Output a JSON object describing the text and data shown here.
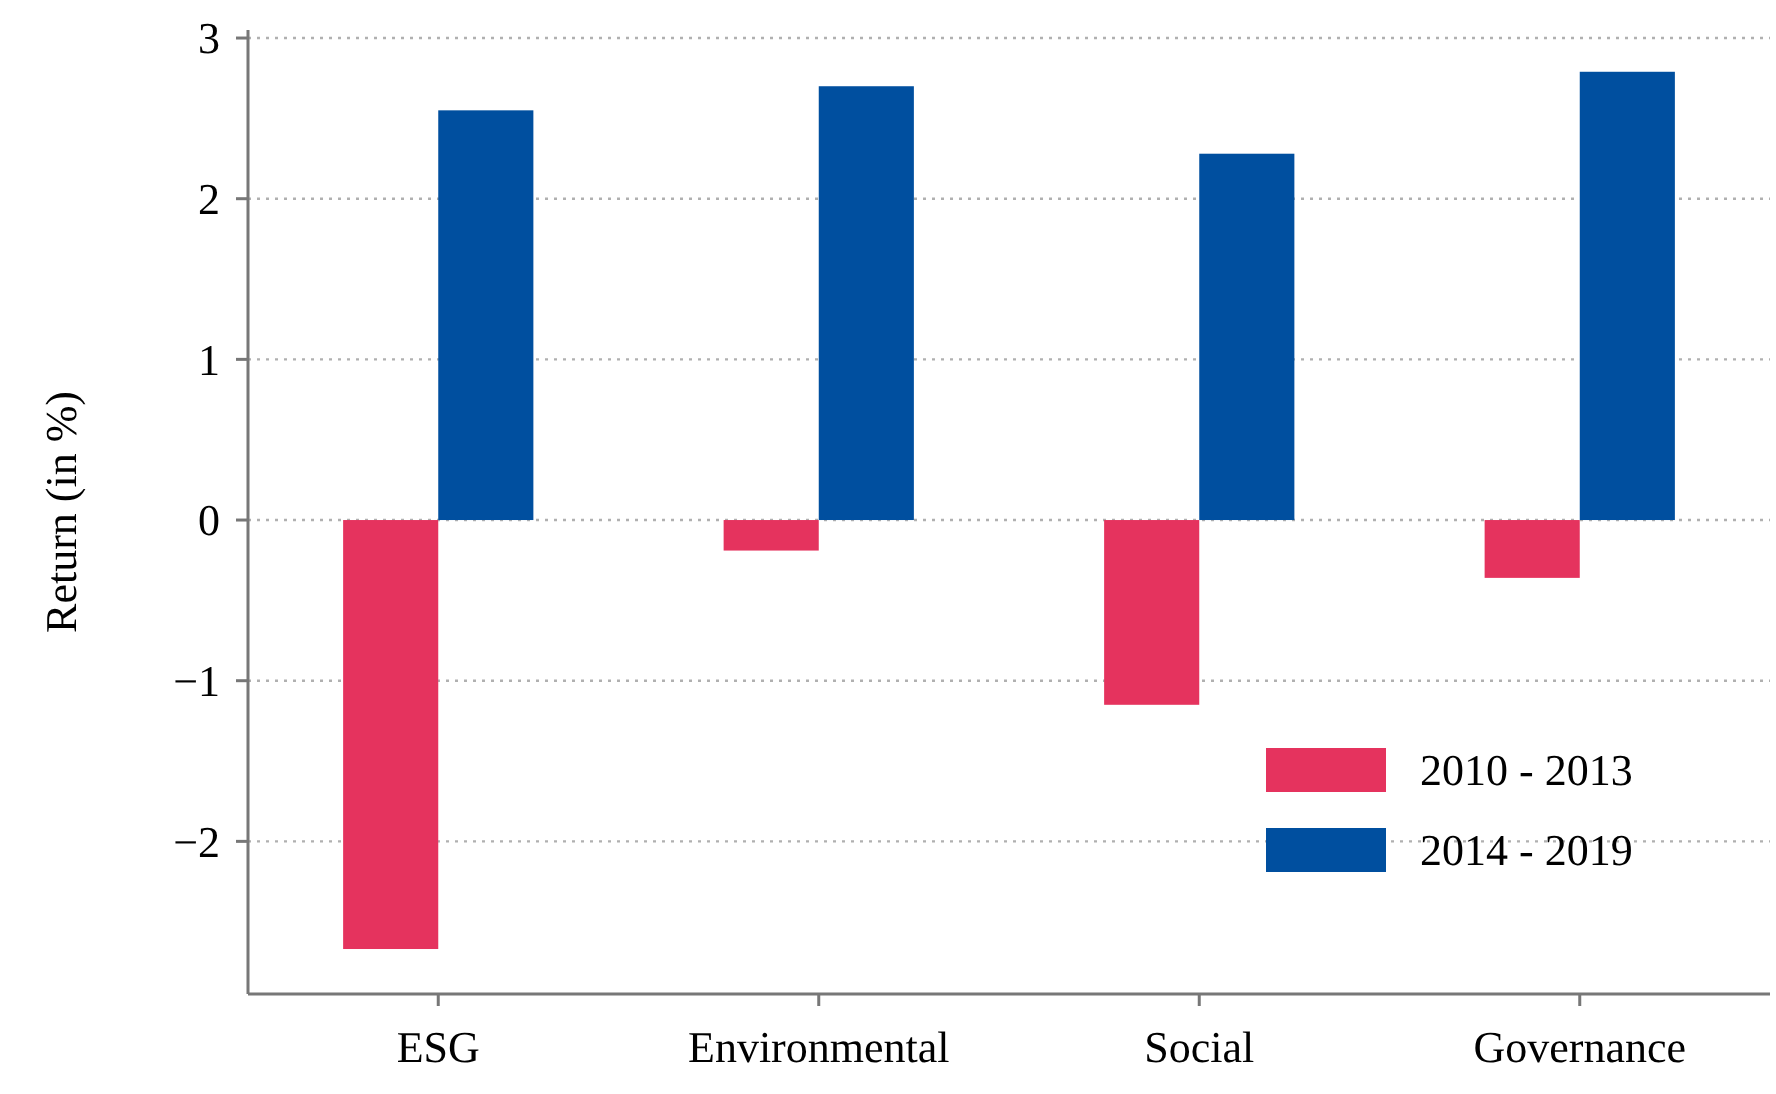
{
  "chart_data": {
    "type": "bar",
    "ylabel": "Return (in %)",
    "categories": [
      "ESG",
      "Environmental",
      "Social",
      "Governance"
    ],
    "series": [
      {
        "name": "2010 - 2013",
        "color": "#e5335e",
        "values": [
          -2.67,
          -0.19,
          -1.15,
          -0.36
        ]
      },
      {
        "name": "2014 - 2019",
        "color": "#004f9f",
        "values": [
          2.55,
          2.7,
          2.28,
          2.79
        ]
      }
    ],
    "ylim": [
      -2.95,
      3.05
    ],
    "yticks": [
      {
        "value": -2,
        "label": "−2"
      },
      {
        "value": -1,
        "label": "−1"
      },
      0,
      1,
      2,
      3
    ],
    "grid": "y",
    "legend": "bottom right"
  }
}
